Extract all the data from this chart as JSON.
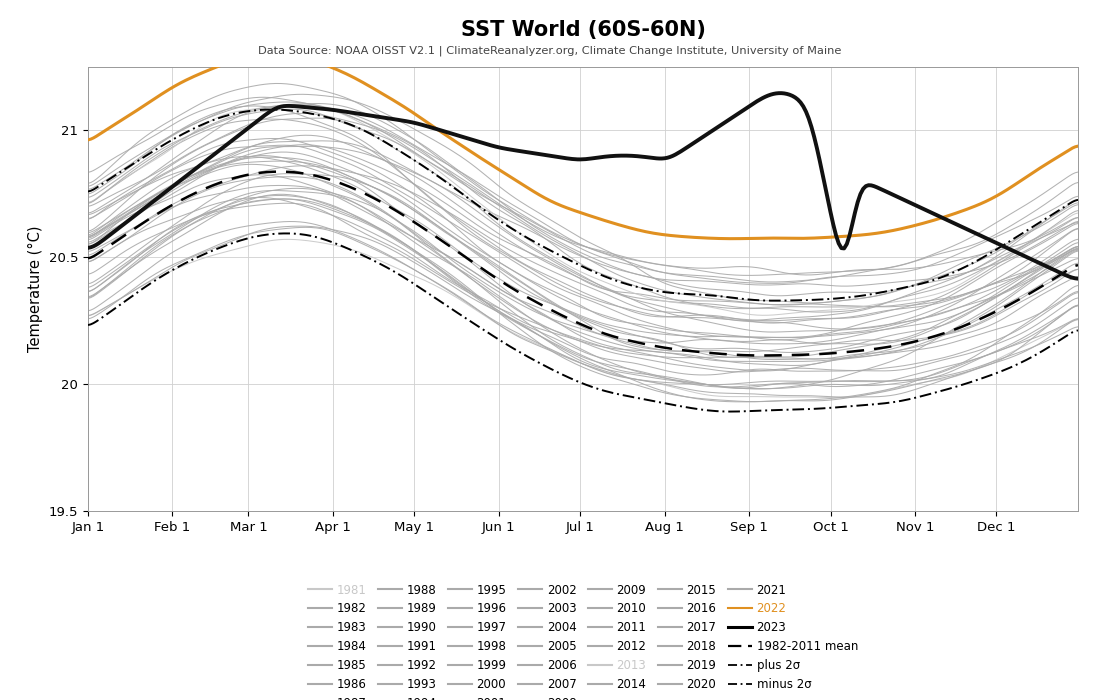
{
  "title": "SST World (60S-60N)",
  "subtitle": "Data Source: NOAA OISST V2.1 | ClimateReanalyzer.org, Climate Change Institute, University of Maine",
  "ylabel": "Temperature (°C)",
  "ylim": [
    19.5,
    21.25
  ],
  "yticks": [
    19.5,
    20.0,
    20.5,
    21.0
  ],
  "background_color": "#ffffff",
  "gray_color": "#aaaaaa",
  "orange_color": "#e09020",
  "black_color": "#111111",
  "light_gray": "#c8c8c8"
}
